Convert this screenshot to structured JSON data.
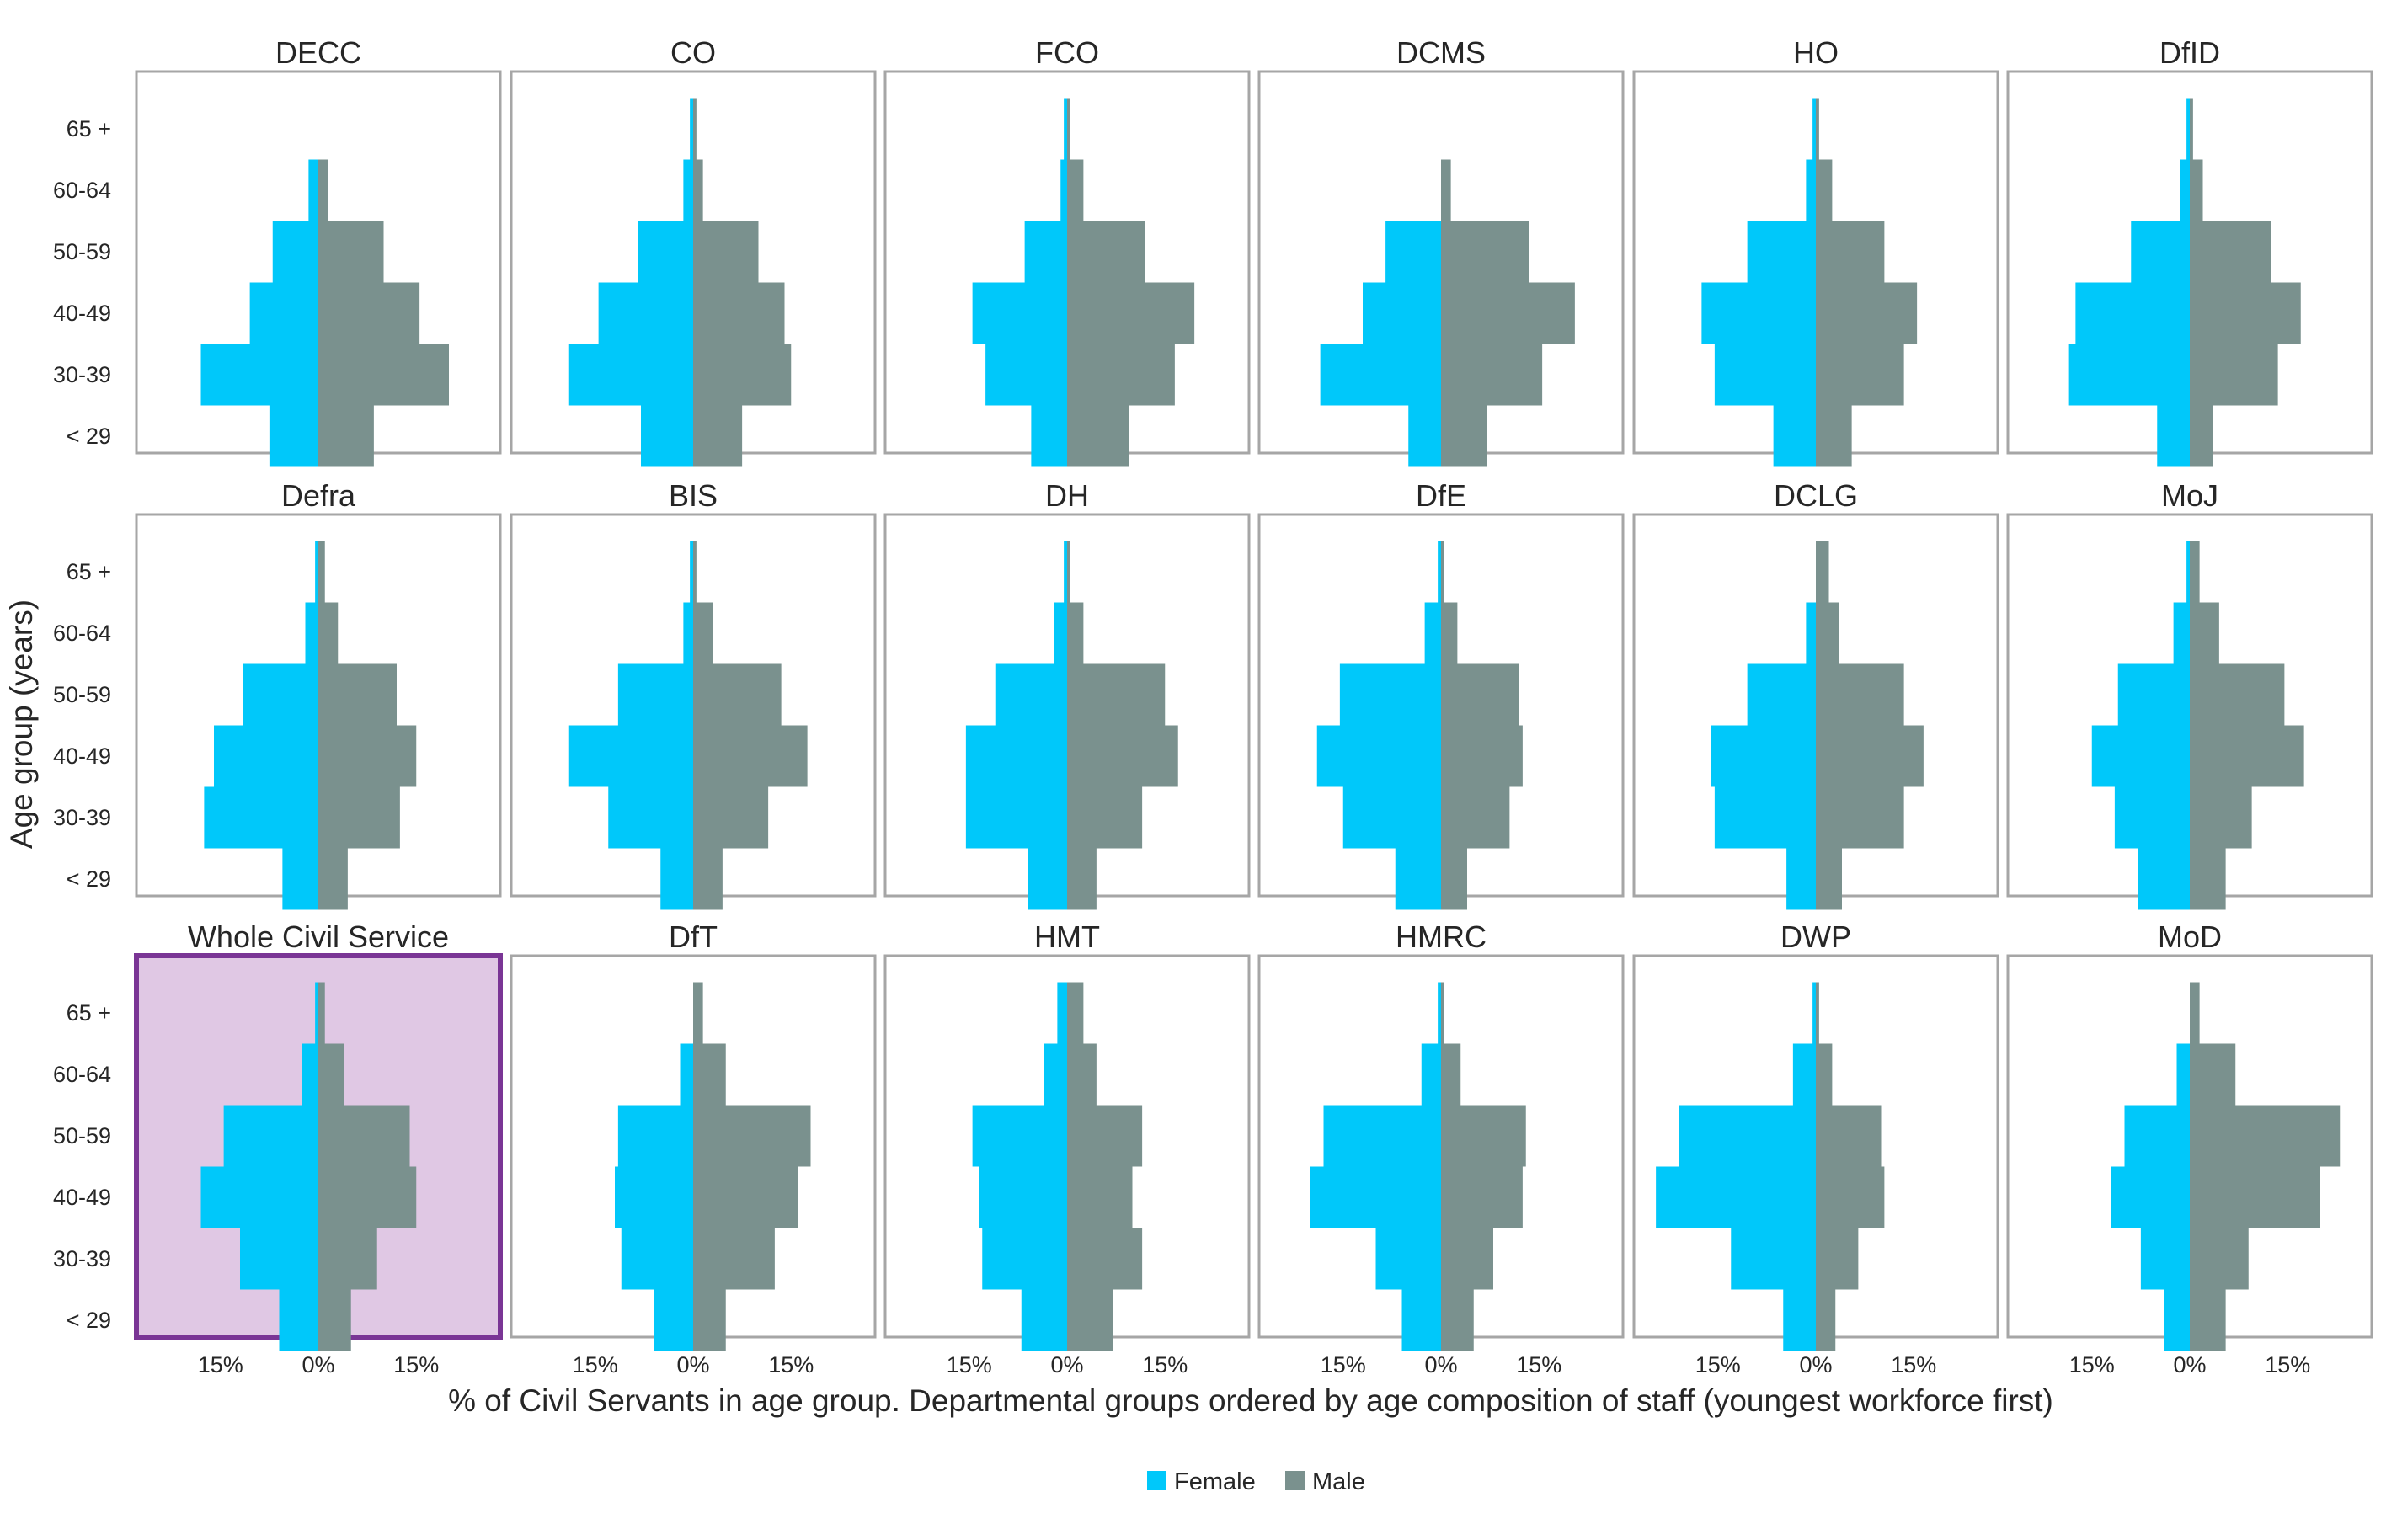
{
  "colors": {
    "female": "#00c8fa",
    "male": "#7a918e",
    "panel_border": "#a6a6a6",
    "highlight_border": "#7a3595",
    "highlight_fill": "#e0c8e4"
  },
  "chart_data": {
    "type": "bar",
    "subtype": "population-pyramid-small-multiples",
    "age_groups": [
      "< 29",
      "30-39",
      "40-49",
      "50-59",
      "60-64",
      "65 +"
    ],
    "ylabel": "Age group (years)",
    "xlabel": "% of Civil Servants in age group. Departmental groups ordered by age composition of staff (youngest workforce first)",
    "x_ticks": [
      "15%",
      "0%",
      "15%"
    ],
    "xlim": [
      -28,
      28
    ],
    "legend": {
      "position": "bottom-center",
      "items": [
        {
          "key": "female",
          "label": "Female"
        },
        {
          "key": "male",
          "label": "Male"
        }
      ]
    },
    "panels": [
      {
        "name": "DECC",
        "female": [
          7.5,
          18.0,
          10.5,
          7.0,
          1.5,
          0.0
        ],
        "male": [
          8.5,
          20.0,
          15.5,
          10.0,
          1.5,
          0.0
        ]
      },
      {
        "name": "CO",
        "female": [
          8.0,
          19.0,
          14.5,
          8.5,
          1.5,
          0.5
        ],
        "male": [
          7.5,
          15.0,
          14.0,
          10.0,
          1.5,
          0.5
        ]
      },
      {
        "name": "FCO",
        "female": [
          5.5,
          12.5,
          14.5,
          6.5,
          1.0,
          0.5
        ],
        "male": [
          9.5,
          16.5,
          19.5,
          12.0,
          2.5,
          0.5
        ]
      },
      {
        "name": "DCMS",
        "female": [
          5.0,
          18.5,
          12.0,
          8.5,
          0.0,
          0.0
        ],
        "male": [
          7.0,
          15.5,
          20.5,
          13.5,
          1.5,
          0.0
        ]
      },
      {
        "name": "HO",
        "female": [
          6.5,
          15.5,
          17.5,
          10.5,
          1.5,
          0.5
        ],
        "male": [
          5.5,
          13.5,
          15.5,
          10.5,
          2.5,
          0.5
        ]
      },
      {
        "name": "DfID",
        "female": [
          5.0,
          18.5,
          17.5,
          9.0,
          1.5,
          0.5
        ],
        "male": [
          3.5,
          13.5,
          17.0,
          12.5,
          2.0,
          0.5
        ]
      },
      {
        "name": "Defra",
        "female": [
          5.5,
          17.5,
          16.0,
          11.5,
          2.0,
          0.5
        ],
        "male": [
          4.5,
          12.5,
          15.0,
          12.0,
          3.0,
          1.0
        ]
      },
      {
        "name": "BIS",
        "female": [
          5.0,
          13.0,
          19.0,
          11.5,
          1.5,
          0.5
        ],
        "male": [
          4.5,
          11.5,
          17.5,
          13.5,
          3.0,
          0.5
        ]
      },
      {
        "name": "DH",
        "female": [
          6.0,
          15.5,
          15.5,
          11.0,
          2.0,
          0.5
        ],
        "male": [
          4.5,
          11.5,
          17.0,
          15.0,
          2.5,
          0.5
        ]
      },
      {
        "name": "DfE",
        "female": [
          7.0,
          15.0,
          19.0,
          15.5,
          2.5,
          0.5
        ],
        "male": [
          4.0,
          10.5,
          12.5,
          12.0,
          2.5,
          0.5
        ]
      },
      {
        "name": "DCLG",
        "female": [
          4.5,
          15.5,
          16.0,
          10.5,
          1.5,
          0.0
        ],
        "male": [
          4.0,
          13.5,
          16.5,
          13.5,
          3.5,
          2.0
        ]
      },
      {
        "name": "MoJ",
        "female": [
          8.0,
          11.5,
          15.0,
          11.0,
          2.5,
          0.5
        ],
        "male": [
          5.5,
          9.5,
          17.5,
          14.5,
          4.5,
          1.5
        ]
      },
      {
        "name": "Whole Civil Service",
        "highlight": true,
        "female": [
          6.0,
          12.0,
          18.0,
          14.5,
          2.5,
          0.5
        ],
        "male": [
          5.0,
          9.0,
          15.0,
          14.0,
          4.0,
          1.0
        ]
      },
      {
        "name": "DfT",
        "female": [
          6.0,
          11.0,
          12.0,
          11.5,
          2.0,
          0.0
        ],
        "male": [
          5.0,
          12.5,
          16.0,
          18.0,
          5.0,
          1.5
        ]
      },
      {
        "name": "HMT",
        "female": [
          7.0,
          13.0,
          13.5,
          14.5,
          3.5,
          1.5
        ],
        "male": [
          7.0,
          11.5,
          10.0,
          11.5,
          4.5,
          2.5
        ]
      },
      {
        "name": "HMRC",
        "female": [
          6.0,
          10.0,
          20.0,
          18.0,
          3.0,
          0.5
        ],
        "male": [
          5.0,
          8.0,
          12.5,
          13.0,
          3.0,
          0.5
        ]
      },
      {
        "name": "DWP",
        "female": [
          5.0,
          13.0,
          24.5,
          21.0,
          3.5,
          0.5
        ],
        "male": [
          3.0,
          6.5,
          10.5,
          10.0,
          2.5,
          0.5
        ]
      },
      {
        "name": "MoD",
        "female": [
          4.0,
          7.5,
          12.0,
          10.0,
          2.0,
          0.0
        ],
        "male": [
          5.5,
          9.0,
          20.0,
          23.0,
          7.0,
          1.5
        ]
      }
    ]
  }
}
